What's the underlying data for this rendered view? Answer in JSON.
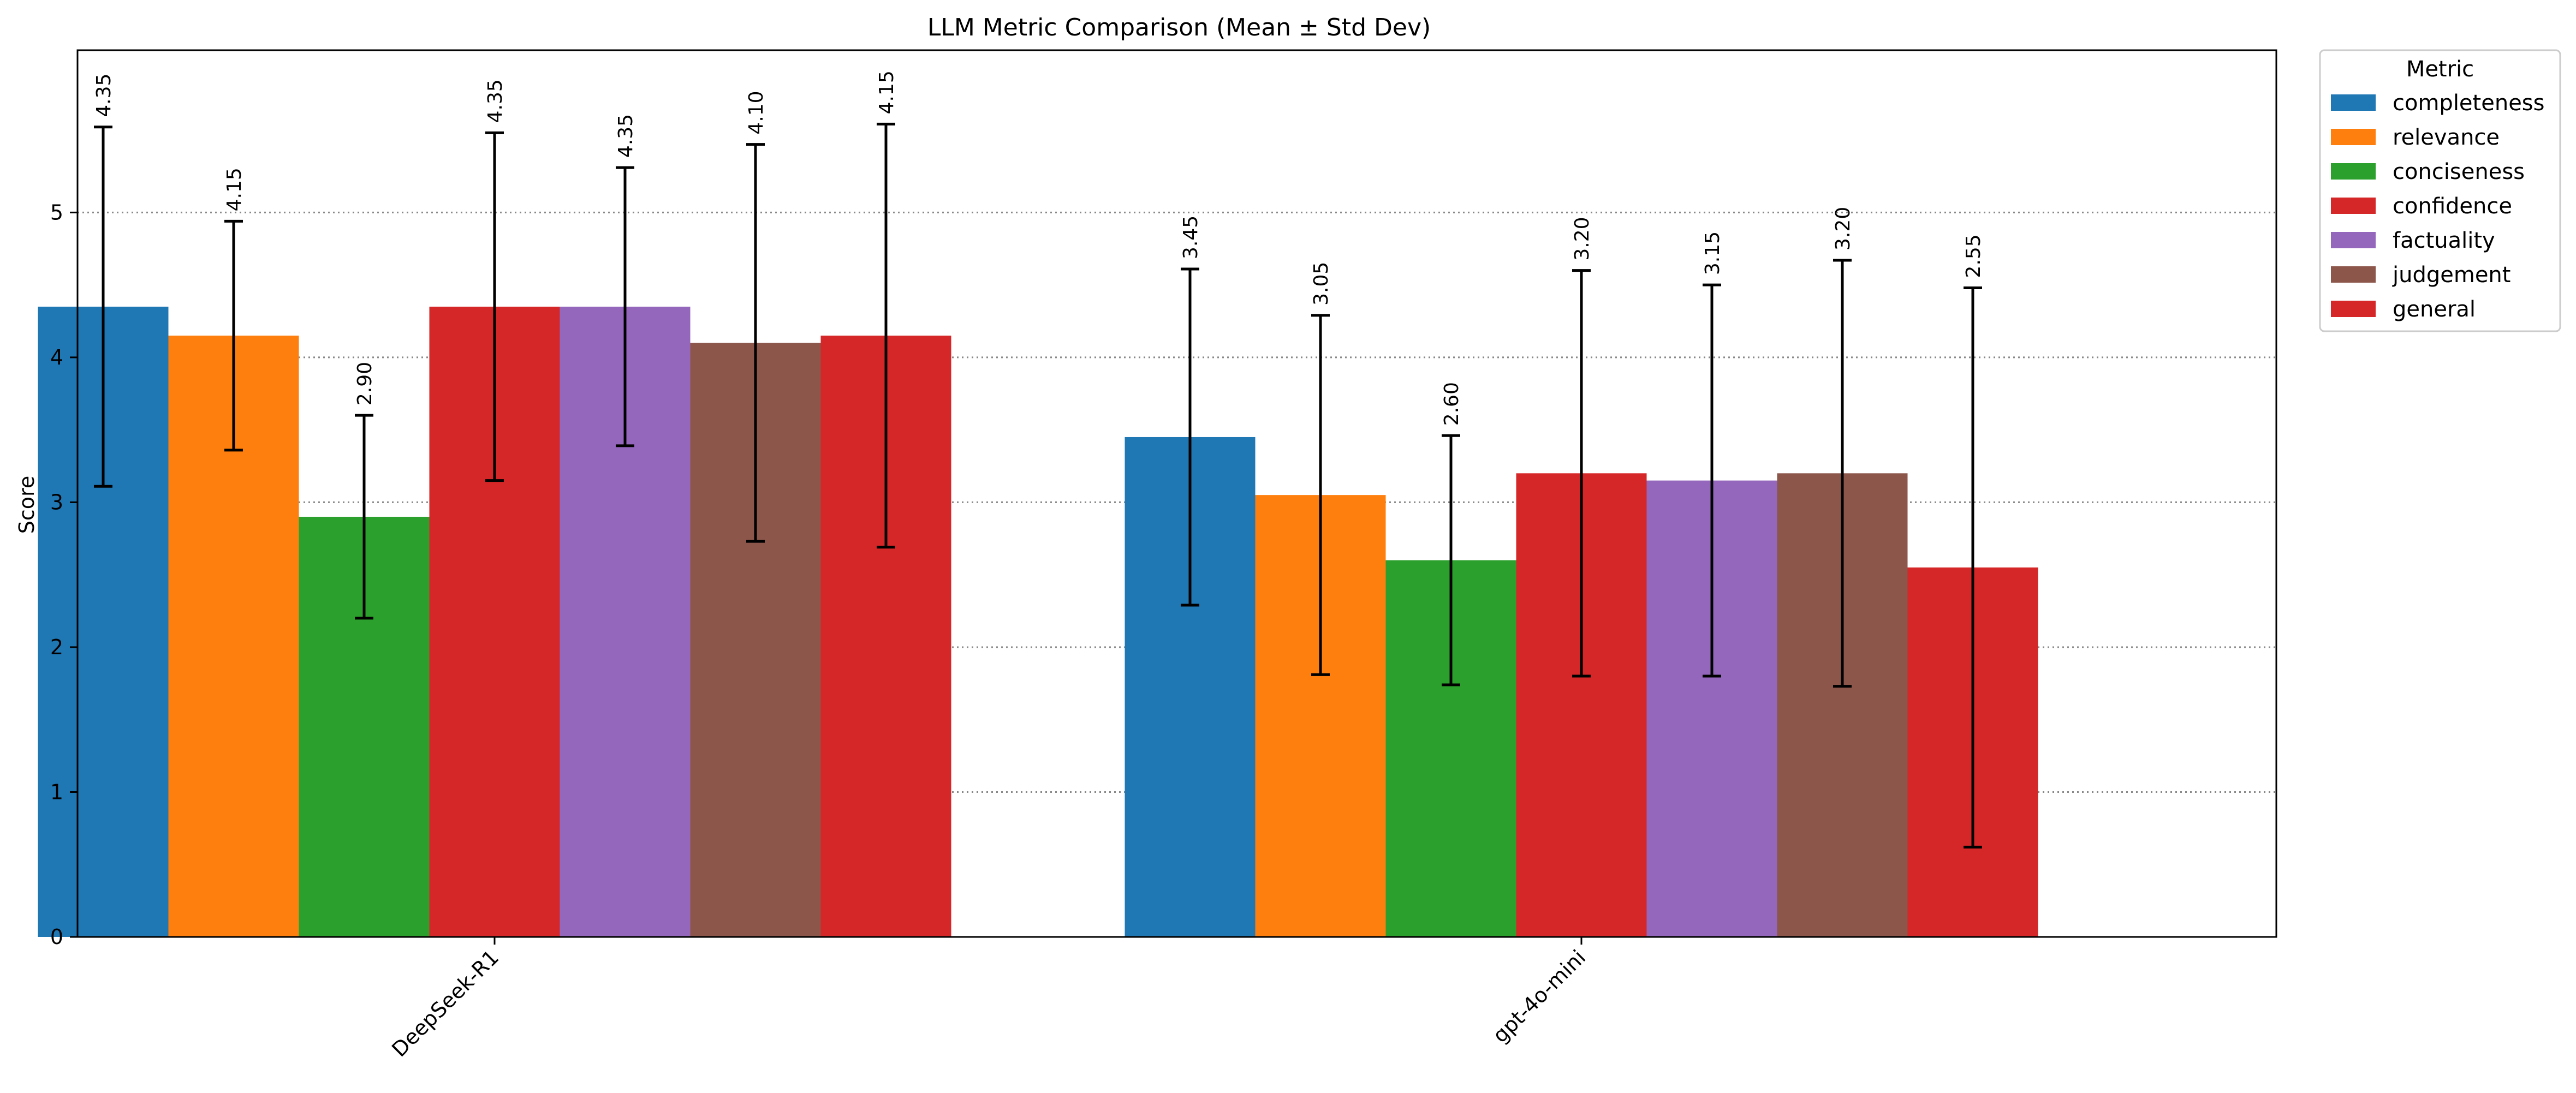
{
  "chart_data": {
    "type": "bar",
    "title": "LLM Metric Comparison (Mean ± Std Dev)",
    "xlabel": "",
    "ylabel": "Score",
    "ylim": [
      0,
      6.12
    ],
    "yticks": [
      0,
      1,
      2,
      3,
      4,
      5
    ],
    "grid": "y dotted",
    "legend": {
      "title": "Metric",
      "placement": "outside top-right"
    },
    "categories": [
      "DeepSeek-R1",
      "gpt-4o-mini"
    ],
    "series": [
      {
        "name": "completeness",
        "color": "#1f77b4",
        "values": [
          4.35,
          3.45
        ],
        "errors": [
          1.24,
          1.16
        ],
        "labels": [
          "4.35",
          "3.45"
        ]
      },
      {
        "name": "relevance",
        "color": "#ff7f0e",
        "values": [
          4.15,
          3.05
        ],
        "errors": [
          0.79,
          1.24
        ],
        "labels": [
          "4.15",
          "3.05"
        ]
      },
      {
        "name": "conciseness",
        "color": "#2ca02c",
        "values": [
          2.9,
          2.6
        ],
        "errors": [
          0.7,
          0.86
        ],
        "labels": [
          "2.90",
          "2.60"
        ]
      },
      {
        "name": "confidence",
        "color": "#d62728",
        "values": [
          4.35,
          3.2
        ],
        "errors": [
          1.2,
          1.4
        ],
        "labels": [
          "4.35",
          "3.20"
        ]
      },
      {
        "name": "factuality",
        "color": "#9467bd",
        "values": [
          4.35,
          3.15
        ],
        "errors": [
          0.96,
          1.35
        ],
        "labels": [
          "4.35",
          "3.15"
        ]
      },
      {
        "name": "judgement",
        "color": "#8c564b",
        "values": [
          4.1,
          3.2
        ],
        "errors": [
          1.37,
          1.47
        ],
        "labels": [
          "4.10",
          "3.20"
        ]
      },
      {
        "name": "general",
        "color": "#d62728",
        "values": [
          4.15,
          2.55
        ],
        "errors": [
          1.46,
          1.93
        ],
        "labels": [
          "4.15",
          "2.55"
        ]
      }
    ]
  }
}
